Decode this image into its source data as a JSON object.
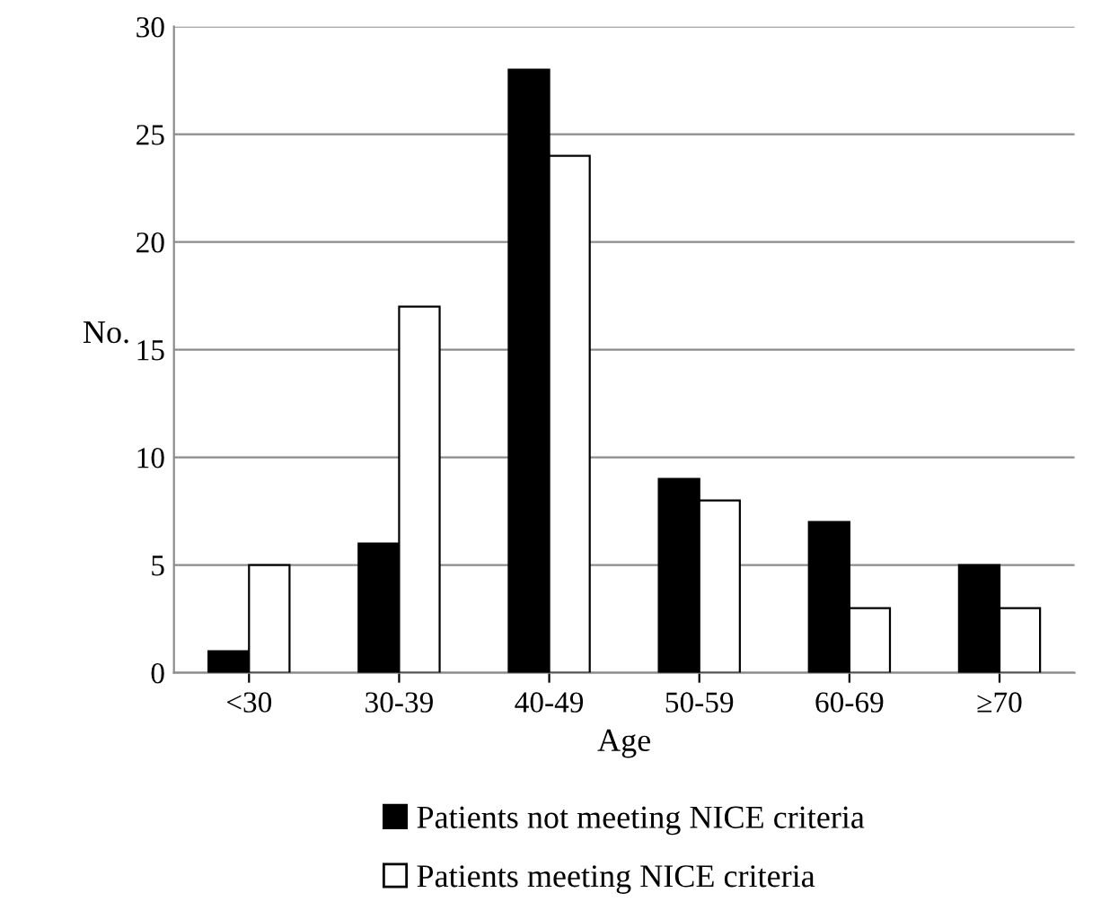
{
  "chart_data": {
    "type": "bar",
    "xlabel": "Age",
    "ylabel": "No.",
    "categories": [
      "<30",
      "30-39",
      "40-49",
      "50-59",
      "60-69",
      "≥70"
    ],
    "series": [
      {
        "name": "Patients not meeting NICE criteria",
        "color": "#000000",
        "values": [
          1,
          6,
          28,
          9,
          7,
          5
        ]
      },
      {
        "name": "Patients meeting NICE criteria",
        "color": "#ffffff",
        "values": [
          5,
          17,
          24,
          8,
          3,
          3
        ]
      }
    ],
    "ylim": [
      0,
      30
    ],
    "yticks": [
      0,
      5,
      10,
      15,
      20,
      25,
      30
    ],
    "grid": "y",
    "legend": "bottom"
  }
}
